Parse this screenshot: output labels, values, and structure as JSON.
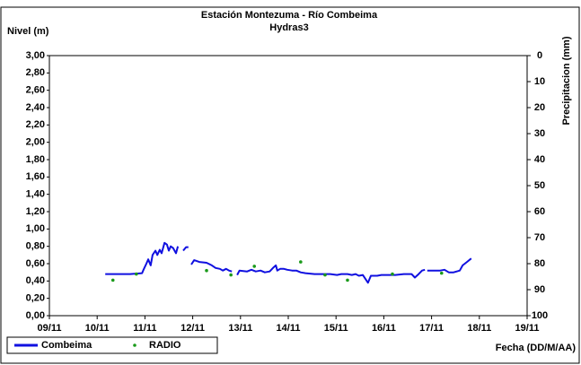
{
  "chart_data": {
    "type": "line",
    "title": "Estación Montezuma - Río Combeima",
    "subtitle": "Hydras3",
    "y_label": "Nivel (m)",
    "y2_label": "Precipitacion (mm)",
    "x_label": "Fecha (DD/M/AA)",
    "xlim": [
      9,
      19
    ],
    "xticks": [
      {
        "value": 9,
        "label": "09/11"
      },
      {
        "value": 10,
        "label": "10/11"
      },
      {
        "value": 11,
        "label": "11/11"
      },
      {
        "value": 12,
        "label": "12/11"
      },
      {
        "value": 13,
        "label": "13/11"
      },
      {
        "value": 14,
        "label": "14/11"
      },
      {
        "value": 15,
        "label": "15/11"
      },
      {
        "value": 16,
        "label": "16/11"
      },
      {
        "value": 17,
        "label": "17/11"
      },
      {
        "value": 18,
        "label": "18/11"
      },
      {
        "value": 19,
        "label": "19/11"
      }
    ],
    "ylim": [
      0,
      3
    ],
    "yticks": [
      {
        "value": 0,
        "label": "0,00"
      },
      {
        "value": 0.2,
        "label": "0,20"
      },
      {
        "value": 0.4,
        "label": "0,40"
      },
      {
        "value": 0.6,
        "label": "0,60"
      },
      {
        "value": 0.8,
        "label": "0,80"
      },
      {
        "value": 1,
        "label": "1,00"
      },
      {
        "value": 1.2,
        "label": "1,20"
      },
      {
        "value": 1.4,
        "label": "1,40"
      },
      {
        "value": 1.6,
        "label": "1,60"
      },
      {
        "value": 1.8,
        "label": "1,80"
      },
      {
        "value": 2,
        "label": "2,00"
      },
      {
        "value": 2.2,
        "label": "2,20"
      },
      {
        "value": 2.4,
        "label": "2,40"
      },
      {
        "value": 2.6,
        "label": "2,60"
      },
      {
        "value": 2.8,
        "label": "2,80"
      },
      {
        "value": 3,
        "label": "3,00"
      }
    ],
    "y2lim": [
      100,
      0
    ],
    "y2ticks": [
      0,
      10,
      20,
      30,
      40,
      50,
      60,
      70,
      80,
      90,
      100
    ],
    "grid": false,
    "legend": "bottom-left",
    "series": [
      {
        "name": "Combeima",
        "color": "#1010e0",
        "mode": "line",
        "x": [
          10.17,
          10.41,
          10.69,
          10.94,
          10.97,
          11.03,
          11.07,
          11.12,
          11.16,
          11.22,
          11.26,
          11.31,
          11.35,
          11.41,
          11.46,
          11.5,
          11.54,
          11.59,
          11.65,
          11.69,
          11.75,
          11.8,
          11.86,
          11.91,
          11.94,
          11.97,
          12.03,
          12.14,
          12.29,
          12.4,
          12.48,
          12.57,
          12.63,
          12.7,
          12.76,
          12.82,
          12.88,
          12.93,
          12.98,
          13.14,
          13.23,
          13.32,
          13.42,
          13.51,
          13.61,
          13.68,
          13.74,
          13.77,
          13.83,
          13.91,
          13.98,
          14.08,
          14.17,
          14.26,
          14.36,
          14.55,
          14.73,
          14.88,
          15.02,
          15.11,
          15.24,
          15.33,
          15.41,
          15.48,
          15.56,
          15.67,
          15.73,
          15.86,
          15.95,
          16.05,
          16.24,
          16.42,
          16.58,
          16.65,
          16.73,
          16.8,
          16.86,
          16.89,
          16.91,
          17.08,
          17.18,
          17.27,
          17.36,
          17.46,
          17.59,
          17.65,
          17.74,
          17.83
        ],
        "values": [
          0.48,
          0.48,
          0.48,
          0.49,
          0.53,
          0.6,
          0.65,
          0.58,
          0.7,
          0.75,
          0.7,
          0.76,
          0.72,
          0.84,
          0.82,
          0.75,
          0.8,
          0.78,
          0.72,
          0.8,
          null,
          0.75,
          0.79,
          0.79,
          null,
          0.59,
          0.64,
          0.62,
          0.61,
          0.58,
          0.55,
          0.54,
          0.52,
          0.54,
          0.52,
          0.51,
          null,
          0.47,
          0.52,
          0.51,
          0.53,
          0.51,
          0.52,
          0.5,
          0.51,
          0.55,
          0.58,
          0.52,
          0.54,
          0.54,
          0.53,
          0.52,
          0.52,
          0.5,
          0.49,
          0.48,
          0.48,
          0.48,
          0.47,
          0.48,
          0.48,
          0.47,
          0.48,
          0.46,
          0.47,
          0.38,
          0.46,
          0.46,
          0.47,
          0.47,
          0.47,
          0.48,
          0.48,
          0.44,
          0.48,
          0.52,
          0.53,
          null,
          0.52,
          0.52,
          0.52,
          0.53,
          0.5,
          0.5,
          0.52,
          0.58,
          0.62,
          0.66
        ]
      },
      {
        "name": "RADIO",
        "color": "#1a9a1a",
        "mode": "markers",
        "x": [
          10.33,
          10.82,
          12.29,
          12.8,
          13.29,
          14.26,
          14.77,
          15.24,
          16.18,
          17.21
        ],
        "values": [
          0.41,
          0.48,
          0.52,
          0.47,
          0.57,
          0.62,
          0.47,
          0.41,
          0.48,
          0.49
        ]
      }
    ]
  }
}
